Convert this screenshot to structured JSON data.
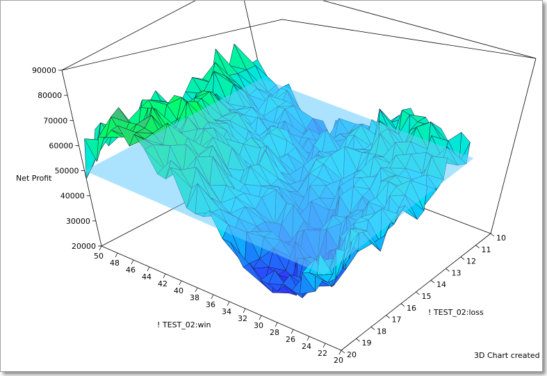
{
  "status": {
    "text": "3D Chart created"
  },
  "chart_data": {
    "type": "surface3d",
    "title": "",
    "z_axis": {
      "label": "Net Profit",
      "ticks": [
        20000,
        30000,
        40000,
        50000,
        60000,
        70000,
        80000,
        90000
      ],
      "range": [
        20000,
        90000
      ]
    },
    "x_axis": {
      "label": "! TEST_02:win",
      "ticks": [
        50,
        48,
        46,
        44,
        42,
        40,
        38,
        36,
        34,
        32,
        30,
        28,
        26,
        24,
        22,
        20
      ],
      "range": [
        20,
        50
      ]
    },
    "y_axis": {
      "label": "! TEST_02:loss",
      "ticks": [
        10,
        11,
        12,
        13,
        14,
        15,
        16,
        17,
        18,
        19,
        20
      ],
      "range": [
        10,
        20
      ]
    },
    "reference_plane": {
      "z": 50000,
      "color": "#66ccff"
    },
    "colormap": [
      "#3030ff",
      "#00e0ff",
      "#00ff60",
      "#ff00c0"
    ],
    "grid": false
  }
}
